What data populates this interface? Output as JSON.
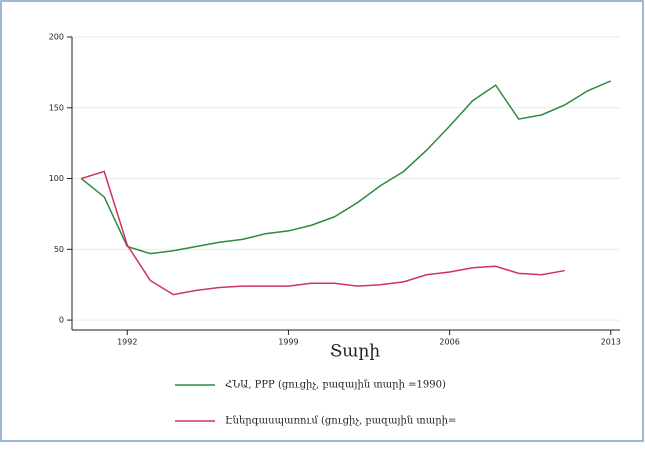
{
  "chart_data": {
    "type": "line",
    "x_label": "Տարի",
    "x": [
      1990,
      1991,
      1992,
      1993,
      1994,
      1995,
      1996,
      1997,
      1998,
      1999,
      2000,
      2001,
      2002,
      2003,
      2004,
      2005,
      2006,
      2007,
      2008,
      2009,
      2010,
      2011,
      2012,
      2013
    ],
    "series": [
      {
        "name": "ՀՆԱ, PPP (ցուցիչ, բազային տարի =1990)",
        "color": "#2e8b3e",
        "values": [
          100,
          87,
          52,
          47,
          49,
          52,
          55,
          57,
          61,
          63,
          67,
          73,
          83,
          95,
          105,
          120,
          137,
          155,
          166,
          142,
          145,
          152,
          162,
          169
        ]
      },
      {
        "name": "Էներգասպառում (ցուցիչ, բազային տարի=",
        "color": "#d0306a",
        "values": [
          100,
          105,
          53,
          28,
          18,
          21,
          23,
          24,
          24,
          24,
          26,
          26,
          24,
          25,
          27,
          32,
          34,
          37,
          38,
          33,
          32,
          35,
          null,
          null
        ]
      }
    ],
    "xlim": [
      1989.6,
      2013.4
    ],
    "xticks": [
      1992,
      1999,
      2006,
      2013
    ],
    "ylim": [
      -7,
      200
    ],
    "yticks": [
      0,
      50,
      100,
      150,
      200
    ],
    "grid": true
  }
}
